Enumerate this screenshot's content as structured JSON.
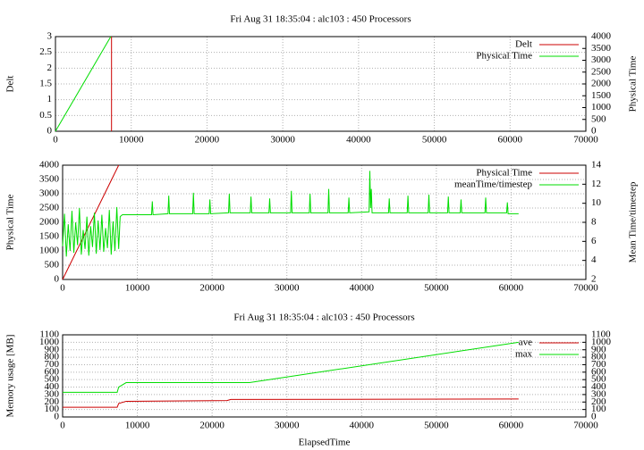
{
  "chart_data": [
    {
      "type": "line",
      "title": "Fri Aug 31 18:35:04 : alc103 : 450 Processors",
      "ylabel": "Delt",
      "y2label": "Physical Time",
      "xlim": [
        0,
        70000
      ],
      "xticks": [
        0,
        10000,
        20000,
        30000,
        40000,
        50000,
        60000,
        70000
      ],
      "ylim": [
        0,
        3
      ],
      "yticks": [
        0,
        0.5,
        1,
        1.5,
        2,
        2.5,
        3
      ],
      "y2lim": [
        0,
        4000
      ],
      "y2ticks": [
        0,
        500,
        1000,
        1500,
        2000,
        2500,
        3000,
        3500,
        4000
      ],
      "grid": true,
      "legend": "top-right",
      "series": [
        {
          "name": "Delt",
          "color": "#cc0000",
          "x": [
            7400,
            7400
          ],
          "values": [
            0,
            3
          ]
        },
        {
          "name": "Physical Time",
          "color": "#00dd00",
          "axis": "y2",
          "x": [
            0,
            7300
          ],
          "values": [
            0,
            4000
          ]
        }
      ]
    },
    {
      "type": "line",
      "ylabel": "Physical Time",
      "y2label": "Mean Time/timestep",
      "xlim": [
        0,
        70000
      ],
      "xticks": [
        0,
        10000,
        20000,
        30000,
        40000,
        50000,
        60000,
        70000
      ],
      "ylim": [
        0,
        4000
      ],
      "yticks": [
        0,
        500,
        1000,
        1500,
        2000,
        2500,
        3000,
        3500,
        4000
      ],
      "y2lim": [
        2,
        14
      ],
      "y2ticks": [
        2,
        4,
        6,
        8,
        10,
        12,
        14
      ],
      "grid": true,
      "legend": "top-right",
      "series": [
        {
          "name": "Physical Time",
          "color": "#cc0000",
          "x": [
            0,
            7500
          ],
          "values": [
            0,
            4000
          ]
        },
        {
          "name": "meanTime/timestep",
          "color": "#00dd00",
          "axis": "y2",
          "x": [
            0,
            250,
            500,
            750,
            1000,
            1250,
            1500,
            1750,
            2000,
            2250,
            2500,
            2750,
            3000,
            3250,
            3500,
            3750,
            4000,
            4250,
            4500,
            4750,
            5000,
            5250,
            5500,
            5750,
            6000,
            6250,
            6500,
            6750,
            7000,
            7250,
            7500,
            7700,
            8000,
            10000,
            11900,
            12000,
            12100,
            14100,
            14200,
            14300,
            17400,
            17500,
            17600,
            19600,
            19700,
            19800,
            22200,
            22300,
            22400,
            25100,
            25200,
            25300,
            27600,
            27700,
            27800,
            30500,
            30600,
            30700,
            33000,
            33100,
            33200,
            35500,
            35600,
            35700,
            38200,
            38300,
            38400,
            41000,
            41100,
            41200,
            41300,
            41400,
            43600,
            43700,
            43800,
            46100,
            46200,
            46300,
            48900,
            49000,
            49100,
            51500,
            51600,
            51700,
            53200,
            53300,
            53400,
            56500,
            56600,
            56700,
            59400,
            59500,
            59600,
            61000
          ],
          "values": [
            5.5,
            8.9,
            4.4,
            7.8,
            5.0,
            9.2,
            4.8,
            8.0,
            5.6,
            9.5,
            4.6,
            7.2,
            5.2,
            8.6,
            4.5,
            7.6,
            5.4,
            9.0,
            4.7,
            8.2,
            5.1,
            8.8,
            4.9,
            7.4,
            5.3,
            9.3,
            4.6,
            8.1,
            5.0,
            9.6,
            5.2,
            8.6,
            8.8,
            8.8,
            8.8,
            10.2,
            8.8,
            8.9,
            10.8,
            8.9,
            8.9,
            11.1,
            8.9,
            8.9,
            10.4,
            8.9,
            9.0,
            11.0,
            9.0,
            9.0,
            10.7,
            9.0,
            9.0,
            10.5,
            9.0,
            9.0,
            11.3,
            9.0,
            9.0,
            11.0,
            9.0,
            9.0,
            11.5,
            9.0,
            9.0,
            10.6,
            9.0,
            9.1,
            13.4,
            9.5,
            11.5,
            9.0,
            9.0,
            10.5,
            9.0,
            9.0,
            10.8,
            9.0,
            9.0,
            10.9,
            9.0,
            9.0,
            10.7,
            9.0,
            9.0,
            10.4,
            9.0,
            9.0,
            10.6,
            9.0,
            9.0,
            10.1,
            8.9,
            8.9
          ]
        }
      ]
    },
    {
      "type": "line",
      "title": "Fri Aug 31 18:35:04 : alc103 : 450 Processors",
      "xlabel": "ElapsedTime",
      "ylabel": "Memory usage [MB]",
      "xlim": [
        0,
        70000
      ],
      "xticks": [
        0,
        10000,
        20000,
        30000,
        40000,
        50000,
        60000,
        70000
      ],
      "ylim": [
        0,
        1100
      ],
      "yticks": [
        0,
        100,
        200,
        300,
        400,
        500,
        600,
        700,
        800,
        900,
        1000,
        1100
      ],
      "y2lim": [
        0,
        1100
      ],
      "y2ticks": [
        0,
        100,
        200,
        300,
        400,
        500,
        600,
        700,
        800,
        900,
        1000,
        1100
      ],
      "grid": true,
      "legend": "top-right",
      "series": [
        {
          "name": "ave",
          "color": "#cc0000",
          "x": [
            0,
            7300,
            7500,
            8500,
            22000,
            22500,
            61000
          ],
          "values": [
            130,
            130,
            180,
            210,
            220,
            235,
            240
          ]
        },
        {
          "name": "max",
          "color": "#00dd00",
          "x": [
            0,
            7300,
            7500,
            8500,
            25000,
            61000
          ],
          "values": [
            330,
            330,
            400,
            460,
            460,
            1000
          ]
        }
      ]
    }
  ]
}
